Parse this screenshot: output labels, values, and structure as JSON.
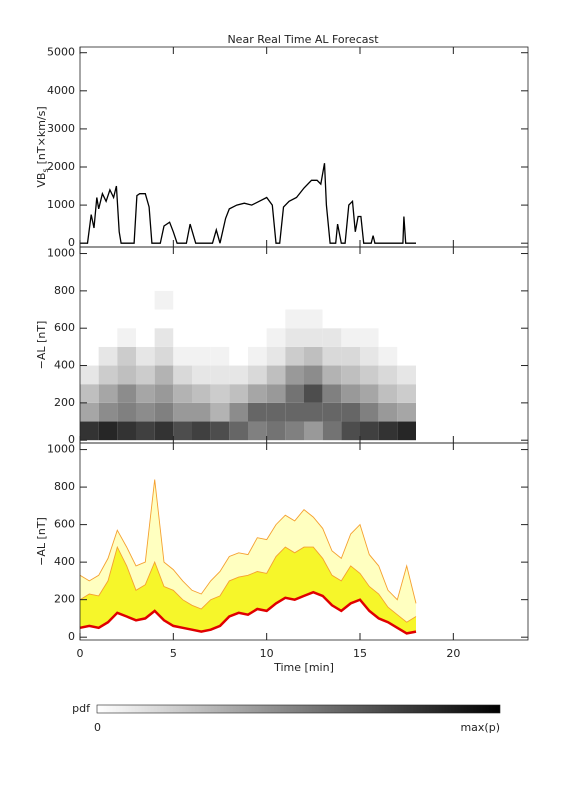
{
  "chart_data": [
    {
      "type": "line",
      "title": "Near Real Time AL Forecast",
      "ylabel": {
        "text": "VB",
        "subscript": "s",
        "unit": "[nT×km/s]"
      },
      "xlim": [
        0,
        24
      ],
      "xticks": [
        0,
        5,
        10,
        15,
        20
      ],
      "xtick_labels": false,
      "ylim": [
        -100,
        5150
      ],
      "yticks": [
        0,
        1000,
        2000,
        3000,
        4000,
        5000
      ],
      "color": "#000000",
      "x": [
        0,
        0.4,
        0.6,
        0.75,
        0.9,
        1.0,
        1.2,
        1.4,
        1.6,
        1.8,
        1.95,
        2.1,
        2.2,
        2.9,
        3.05,
        3.2,
        3.5,
        3.7,
        3.85,
        4.3,
        4.5,
        4.8,
        5.0,
        5.2,
        5.7,
        5.9,
        6.2,
        7.1,
        7.3,
        7.5,
        7.8,
        8.0,
        8.4,
        8.8,
        9.2,
        9.6,
        10.0,
        10.3,
        10.5,
        10.7,
        10.9,
        11.2,
        11.6,
        12.0,
        12.4,
        12.7,
        12.9,
        13.1,
        13.2,
        13.4,
        13.7,
        13.8,
        14.0,
        14.2,
        14.4,
        14.6,
        14.75,
        14.9,
        15.05,
        15.2,
        15.6,
        15.7,
        15.8,
        17.3,
        17.35,
        17.45,
        18.0
      ],
      "values": [
        0,
        0,
        750,
        400,
        1200,
        900,
        1300,
        1100,
        1400,
        1200,
        1500,
        300,
        0,
        0,
        1250,
        1300,
        1300,
        950,
        0,
        0,
        450,
        550,
        300,
        0,
        0,
        500,
        0,
        0,
        350,
        0,
        650,
        900,
        1000,
        1050,
        1000,
        1100,
        1200,
        1000,
        0,
        0,
        950,
        1100,
        1200,
        1450,
        1650,
        1650,
        1550,
        2100,
        1000,
        0,
        0,
        500,
        0,
        0,
        1000,
        1100,
        300,
        700,
        700,
        0,
        0,
        200,
        0,
        0,
        700,
        0,
        0
      ]
    },
    {
      "type": "heatmap",
      "ylabel": {
        "text": "−AL [nT]"
      },
      "xlim": [
        0,
        24
      ],
      "xticks": [
        0,
        5,
        10,
        15,
        20
      ],
      "xtick_labels": false,
      "ylim": [
        -15,
        1035
      ],
      "yticks": [
        0,
        200,
        400,
        600,
        800,
        1000
      ],
      "colormap": [
        "#ffffff",
        "#000000"
      ],
      "x_bins": [
        0,
        1,
        2,
        3,
        4,
        5,
        6,
        7,
        8,
        9,
        10,
        11,
        12,
        13,
        14,
        15,
        16,
        17,
        18
      ],
      "y_bins": [
        0,
        100,
        200,
        300,
        400,
        500,
        600,
        700,
        800
      ],
      "z": [
        [
          0.8,
          0.35,
          0.25,
          0.1,
          0,
          0,
          0,
          0
        ],
        [
          0.85,
          0.45,
          0.35,
          0.2,
          0.1,
          0,
          0,
          0
        ],
        [
          0.8,
          0.5,
          0.45,
          0.25,
          0.2,
          0.05,
          0,
          0
        ],
        [
          0.75,
          0.45,
          0.35,
          0.2,
          0.1,
          0,
          0,
          0
        ],
        [
          0.8,
          0.5,
          0.4,
          0.3,
          0.15,
          0.1,
          0,
          0.05
        ],
        [
          0.7,
          0.4,
          0.3,
          0.15,
          0.05,
          0,
          0,
          0
        ],
        [
          0.75,
          0.4,
          0.25,
          0.1,
          0.05,
          0,
          0,
          0
        ],
        [
          0.7,
          0.3,
          0.2,
          0.1,
          0.05,
          0,
          0,
          0
        ],
        [
          0.6,
          0.45,
          0.25,
          0.1,
          0,
          0,
          0,
          0
        ],
        [
          0.5,
          0.6,
          0.35,
          0.15,
          0.05,
          0,
          0,
          0
        ],
        [
          0.55,
          0.6,
          0.4,
          0.25,
          0.1,
          0.05,
          0,
          0
        ],
        [
          0.5,
          0.6,
          0.55,
          0.4,
          0.2,
          0.1,
          0.05,
          0
        ],
        [
          0.4,
          0.6,
          0.7,
          0.45,
          0.25,
          0.1,
          0.05,
          0
        ],
        [
          0.55,
          0.6,
          0.5,
          0.3,
          0.15,
          0.1,
          0,
          0
        ],
        [
          0.7,
          0.6,
          0.4,
          0.25,
          0.15,
          0.05,
          0,
          0
        ],
        [
          0.75,
          0.5,
          0.35,
          0.2,
          0.1,
          0.05,
          0,
          0
        ],
        [
          0.8,
          0.4,
          0.25,
          0.15,
          0.05,
          0,
          0,
          0
        ],
        [
          0.85,
          0.35,
          0.2,
          0.1,
          0,
          0,
          0,
          0
        ]
      ],
      "colorbar": {
        "label": "pdf",
        "min_label": "0",
        "max_label": "max(p)"
      }
    },
    {
      "type": "area",
      "ylabel": {
        "text": "−AL [nT]"
      },
      "xlabel": "Time [min]",
      "xlim": [
        0,
        24
      ],
      "xticks": [
        0,
        5,
        10,
        15,
        20
      ],
      "ylim": [
        -15,
        1035
      ],
      "yticks": [
        0,
        200,
        400,
        600,
        800,
        1000
      ],
      "x": [
        0,
        0.5,
        1,
        1.5,
        2,
        2.5,
        3,
        3.5,
        4,
        4.5,
        5,
        5.5,
        6,
        6.5,
        7,
        7.5,
        8,
        8.5,
        9,
        9.5,
        10,
        10.5,
        11,
        11.5,
        12,
        12.5,
        13,
        13.5,
        14,
        14.5,
        15,
        15.5,
        16,
        16.5,
        17,
        17.5,
        18
      ],
      "series": [
        {
          "color": "#f5a030",
          "fill": "#ffffc0",
          "values": [
            330,
            300,
            330,
            420,
            570,
            480,
            380,
            400,
            840,
            400,
            360,
            300,
            250,
            230,
            300,
            350,
            430,
            450,
            440,
            530,
            520,
            600,
            650,
            620,
            680,
            640,
            580,
            460,
            420,
            550,
            600,
            440,
            380,
            250,
            200,
            380,
            180
          ]
        },
        {
          "color": "#f5a030",
          "fill": "#f6f62a",
          "values": [
            200,
            230,
            220,
            300,
            480,
            380,
            250,
            280,
            400,
            270,
            250,
            200,
            170,
            150,
            200,
            220,
            300,
            320,
            330,
            350,
            340,
            430,
            480,
            450,
            480,
            480,
            420,
            330,
            300,
            380,
            340,
            270,
            230,
            160,
            120,
            80,
            110
          ]
        },
        {
          "color": "#e00000",
          "fill": "#ffffff",
          "values": [
            50,
            60,
            50,
            80,
            130,
            110,
            90,
            100,
            140,
            90,
            60,
            50,
            40,
            30,
            40,
            60,
            110,
            130,
            120,
            150,
            140,
            180,
            210,
            200,
            220,
            240,
            220,
            170,
            140,
            180,
            200,
            140,
            100,
            80,
            50,
            20,
            30
          ]
        }
      ]
    }
  ]
}
